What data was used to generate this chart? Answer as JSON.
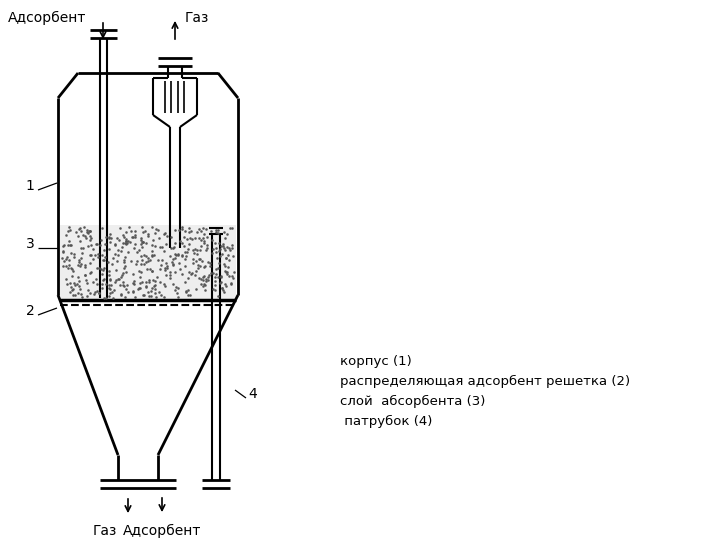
{
  "bg_color": "#ffffff",
  "line_color": "#000000",
  "legend_text": "корпус (1)\nраспределяющая адсорбент решетка (2)\nслой  абсорбента (3)\n патрубок (4)",
  "label_1": "1",
  "label_2": "2",
  "label_3": "3",
  "label_4": "4",
  "top_left_label": "Адсорбент",
  "top_right_label": "Газ",
  "bottom_left_label": "Газ",
  "bottom_right_label": "Адсорбент",
  "fontsize": 9,
  "fontsize_legend": 9.5
}
